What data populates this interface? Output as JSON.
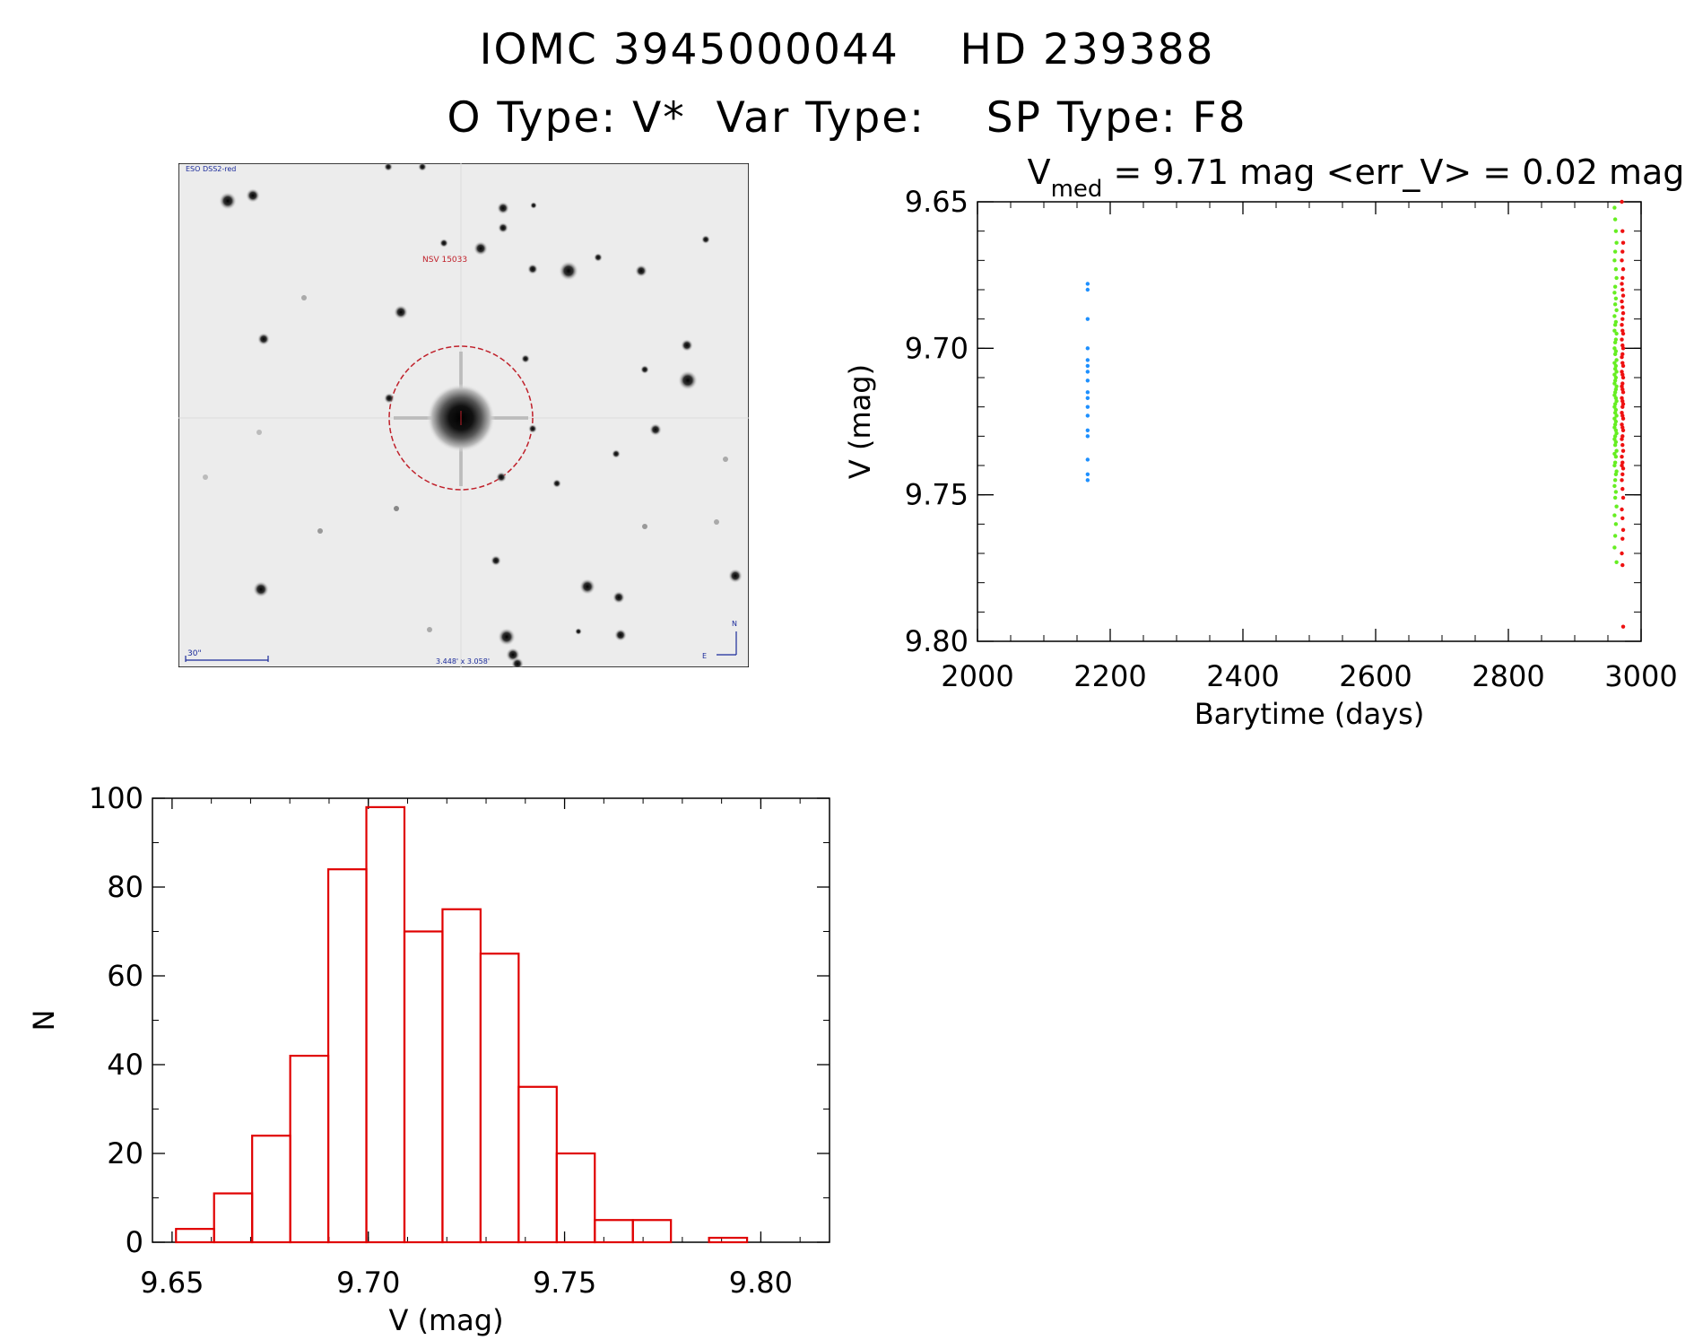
{
  "header": {
    "title_line1": "IOMC 3945000044    HD 239388",
    "title_line2": "O Type: V*  Var Type:    SP Type: F8"
  },
  "finder_chart": {
    "survey_label": "ESO DSS2-red",
    "object_label": "NSV 15033",
    "scale_label": "30\"",
    "fov_label": "3.448' x 3.058'",
    "north_label": "N",
    "east_label": "E",
    "colors": {
      "circle": "#c0202a",
      "labels_red": "#c0202a",
      "labels_blue": "#1a2a9a"
    }
  },
  "chart_data": [
    {
      "type": "scatter",
      "title_prefix": "V",
      "title_sub": "med",
      "title_rest": " = 9.71 mag <err_V> = 0.02 mag",
      "xlabel": "Barytime (days)",
      "ylabel": "V (mag)",
      "xlim": [
        2000,
        3000
      ],
      "ylim": [
        9.8,
        9.65
      ],
      "y_inverted": true,
      "xticks": [
        2000,
        2200,
        2400,
        2600,
        2800,
        3000
      ],
      "yticks": [
        9.65,
        9.7,
        9.75,
        9.8
      ],
      "xtick_labels": [
        "2000",
        "2200",
        "2400",
        "2600",
        "2800",
        "3000"
      ],
      "ytick_labels": [
        "9.65",
        "9.70",
        "9.75",
        "9.80"
      ],
      "grid": false,
      "series": [
        {
          "color": "#1e90ff",
          "x": [
            2166,
            2166,
            2166,
            2166,
            2166,
            2166,
            2166,
            2166,
            2166,
            2166,
            2166,
            2166,
            2166,
            2166,
            2166,
            2166,
            2166
          ],
          "y": [
            9.678,
            9.68,
            9.69,
            9.7,
            9.704,
            9.706,
            9.708,
            9.711,
            9.715,
            9.717,
            9.72,
            9.723,
            9.728,
            9.73,
            9.738,
            9.743,
            9.745
          ]
        },
        {
          "color": "#66ee22",
          "x": [
            2960,
            2961,
            2962,
            2963,
            2961,
            2960,
            2962,
            2963,
            2961,
            2960,
            2962,
            2961,
            2963,
            2960,
            2962,
            2961,
            2960,
            2963,
            2962,
            2961,
            2960,
            2962,
            2961,
            2963,
            2960,
            2962,
            2961,
            2963,
            2960,
            2962,
            2961,
            2960,
            2963,
            2962,
            2961,
            2960,
            2962,
            2963,
            2961,
            2960,
            2962,
            2961,
            2963,
            2960,
            2962,
            2961,
            2960,
            2962,
            2963,
            2961,
            2960,
            2962,
            2961,
            2963,
            2960,
            2962,
            2961,
            2960,
            2963,
            2962,
            2961,
            2960,
            2962,
            2961,
            2963,
            2960,
            2962,
            2961,
            2960,
            2963
          ],
          "y": [
            9.652,
            9.656,
            9.66,
            9.664,
            9.667,
            9.67,
            9.673,
            9.676,
            9.679,
            9.681,
            9.683,
            9.685,
            9.687,
            9.689,
            9.691,
            9.692,
            9.694,
            9.695,
            9.697,
            9.698,
            9.7,
            9.701,
            9.702,
            9.704,
            9.705,
            9.706,
            9.707,
            9.708,
            9.709,
            9.71,
            9.711,
            9.712,
            9.713,
            9.714,
            9.715,
            9.716,
            9.717,
            9.718,
            9.719,
            9.72,
            9.721,
            9.722,
            9.723,
            9.724,
            9.725,
            9.726,
            9.727,
            9.728,
            9.729,
            9.73,
            9.731,
            9.732,
            9.733,
            9.735,
            9.736,
            9.737,
            9.739,
            9.74,
            9.742,
            9.743,
            9.745,
            9.747,
            9.749,
            9.751,
            9.754,
            9.757,
            9.76,
            9.764,
            9.768,
            9.773
          ]
        },
        {
          "color": "#ee1111",
          "x": [
            2971,
            2972,
            2973,
            2972,
            2971,
            2973,
            2972,
            2971,
            2972,
            2973,
            2971,
            2972,
            2973,
            2972,
            2971,
            2972,
            2973,
            2971,
            2972,
            2973,
            2972,
            2971,
            2972,
            2973,
            2971,
            2972,
            2973,
            2972,
            2971,
            2972,
            2973,
            2971,
            2972,
            2973,
            2972,
            2971,
            2972,
            2973,
            2971,
            2972,
            2973,
            2972,
            2971,
            2972,
            2973,
            2971,
            2972,
            2973,
            2972,
            2971,
            2972,
            2973,
            2971,
            2972,
            2973,
            2972,
            2971,
            2972,
            2973,
            2971
          ],
          "y": [
            9.65,
            9.66,
            9.664,
            9.667,
            9.67,
            9.673,
            9.676,
            9.678,
            9.68,
            9.682,
            9.684,
            9.686,
            9.688,
            9.69,
            9.692,
            9.694,
            9.695,
            9.697,
            9.699,
            9.7,
            9.702,
            9.703,
            9.705,
            9.706,
            9.708,
            9.709,
            9.71,
            9.712,
            9.713,
            9.714,
            9.715,
            9.717,
            9.718,
            9.719,
            9.72,
            9.722,
            9.723,
            9.724,
            9.726,
            9.727,
            9.728,
            9.73,
            9.731,
            9.733,
            9.735,
            9.737,
            9.739,
            9.741,
            9.743,
            9.745,
            9.748,
            9.751,
            9.755,
            9.758,
            9.762,
            9.765,
            9.77,
            9.774,
            9.795,
            9.74
          ]
        }
      ]
    },
    {
      "type": "bar",
      "style": "histogram",
      "xlabel": "V (mag)",
      "ylabel": "N",
      "xlim": [
        9.645,
        9.8175
      ],
      "ylim": [
        0,
        100
      ],
      "xticks": [
        9.65,
        9.7,
        9.75,
        9.8
      ],
      "yticks": [
        0,
        20,
        40,
        60,
        80,
        100
      ],
      "xtick_labels": [
        "9.65",
        "9.70",
        "9.75",
        "9.80"
      ],
      "ytick_labels": [
        "0",
        "20",
        "40",
        "60",
        "80",
        "100"
      ],
      "grid": false,
      "color": "#e00000",
      "bin_edges": [
        9.651,
        9.6607,
        9.6704,
        9.6801,
        9.6898,
        9.6995,
        9.7092,
        9.7189,
        9.7286,
        9.7383,
        9.748,
        9.7577,
        9.7674,
        9.7771,
        9.7868,
        9.7965
      ],
      "values": [
        3,
        11,
        24,
        42,
        84,
        98,
        70,
        75,
        65,
        35,
        20,
        5,
        5,
        0,
        1
      ]
    }
  ]
}
